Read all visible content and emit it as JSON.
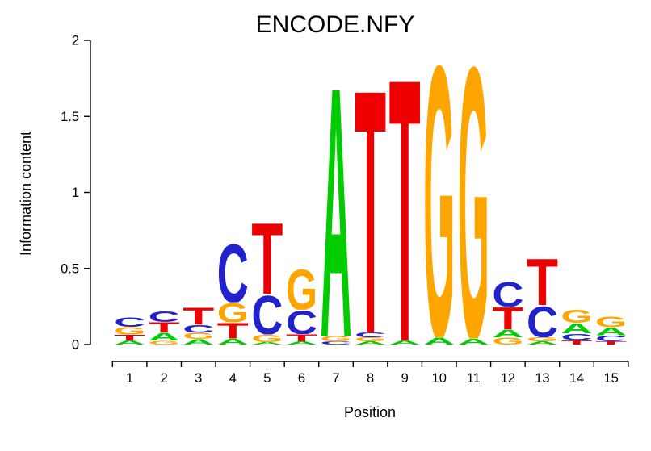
{
  "chart_data": {
    "type": "sequence_logo",
    "title": "ENCODE.NFY",
    "xlabel": "Position",
    "ylabel": "Information content",
    "ylim": [
      0,
      2
    ],
    "yticks": [
      "0",
      "0.5",
      "1",
      "1.5",
      "2"
    ],
    "ytick_values": [
      0,
      0.5,
      1,
      1.5,
      2
    ],
    "position_labels": [
      "1",
      "2",
      "3",
      "4",
      "5",
      "6",
      "7",
      "8",
      "9",
      "10",
      "11",
      "12",
      "13",
      "14",
      "15"
    ],
    "letter_colors": {
      "A": "#00CC00",
      "C": "#2222CC",
      "G": "#FFA500",
      "T": "#EE0000"
    },
    "stacks": [
      {
        "position": 1,
        "letters": [
          {
            "letter": "A",
            "bits": 0.03
          },
          {
            "letter": "T",
            "bits": 0.036
          },
          {
            "letter": "G",
            "bits": 0.05
          },
          {
            "letter": "C",
            "bits": 0.066
          }
        ]
      },
      {
        "position": 2,
        "letters": [
          {
            "letter": "G",
            "bits": 0.026
          },
          {
            "letter": "A",
            "bits": 0.055
          },
          {
            "letter": "T",
            "bits": 0.068
          },
          {
            "letter": "C",
            "bits": 0.072
          }
        ]
      },
      {
        "position": 3,
        "letters": [
          {
            "letter": "A",
            "bits": 0.036
          },
          {
            "letter": "G",
            "bits": 0.042
          },
          {
            "letter": "C",
            "bits": 0.053
          },
          {
            "letter": "T",
            "bits": 0.117
          }
        ]
      },
      {
        "position": 4,
        "letters": [
          {
            "letter": "A",
            "bits": 0.04
          },
          {
            "letter": "T",
            "bits": 0.107
          },
          {
            "letter": "G",
            "bits": 0.131
          },
          {
            "letter": "C",
            "bits": 0.399
          }
        ]
      },
      {
        "position": 5,
        "letters": [
          {
            "letter": "A",
            "bits": 0.016
          },
          {
            "letter": "G",
            "bits": 0.05
          },
          {
            "letter": "C",
            "bits": 0.266
          },
          {
            "letter": "T",
            "bits": 0.489
          }
        ]
      },
      {
        "position": 6,
        "letters": [
          {
            "letter": "A",
            "bits": 0.021
          },
          {
            "letter": "T",
            "bits": 0.048
          },
          {
            "letter": "C",
            "bits": 0.16
          },
          {
            "letter": "G",
            "bits": 0.276
          }
        ]
      },
      {
        "position": 7,
        "letters": [
          {
            "letter": "C",
            "bits": 0.02
          },
          {
            "letter": "G",
            "bits": 0.037
          },
          {
            "letter": "A",
            "bits": 1.713
          }
        ]
      },
      {
        "position": 8,
        "letters": [
          {
            "letter": "A",
            "bits": 0.021
          },
          {
            "letter": "G",
            "bits": 0.027
          },
          {
            "letter": "C",
            "bits": 0.032
          },
          {
            "letter": "T",
            "bits": 1.672
          }
        ]
      },
      {
        "position": 9,
        "letters": [
          {
            "letter": "A",
            "bits": 0.027
          },
          {
            "letter": "T",
            "bits": 1.803
          }
        ]
      },
      {
        "position": 10,
        "letters": [
          {
            "letter": "A",
            "bits": 0.048
          },
          {
            "letter": "G",
            "bits": 1.872
          }
        ]
      },
      {
        "position": 11,
        "letters": [
          {
            "letter": "A",
            "bits": 0.04
          },
          {
            "letter": "G",
            "bits": 1.87
          }
        ]
      },
      {
        "position": 12,
        "letters": [
          {
            "letter": "G",
            "bits": 0.048
          },
          {
            "letter": "A",
            "bits": 0.053
          },
          {
            "letter": "T",
            "bits": 0.149
          },
          {
            "letter": "C",
            "bits": 0.17
          }
        ]
      },
      {
        "position": 13,
        "letters": [
          {
            "letter": "A",
            "bits": 0.021
          },
          {
            "letter": "G",
            "bits": 0.027
          },
          {
            "letter": "C",
            "bits": 0.212
          },
          {
            "letter": "T",
            "bits": 0.318
          }
        ]
      },
      {
        "position": 14,
        "letters": [
          {
            "letter": "T",
            "bits": 0.03
          },
          {
            "letter": "C",
            "bits": 0.043
          },
          {
            "letter": "A",
            "bits": 0.069
          },
          {
            "letter": "G",
            "bits": 0.09
          }
        ]
      },
      {
        "position": 15,
        "letters": [
          {
            "letter": "T",
            "bits": 0.022
          },
          {
            "letter": "C",
            "bits": 0.038
          },
          {
            "letter": "A",
            "bits": 0.053
          },
          {
            "letter": "G",
            "bits": 0.071
          }
        ]
      }
    ]
  }
}
